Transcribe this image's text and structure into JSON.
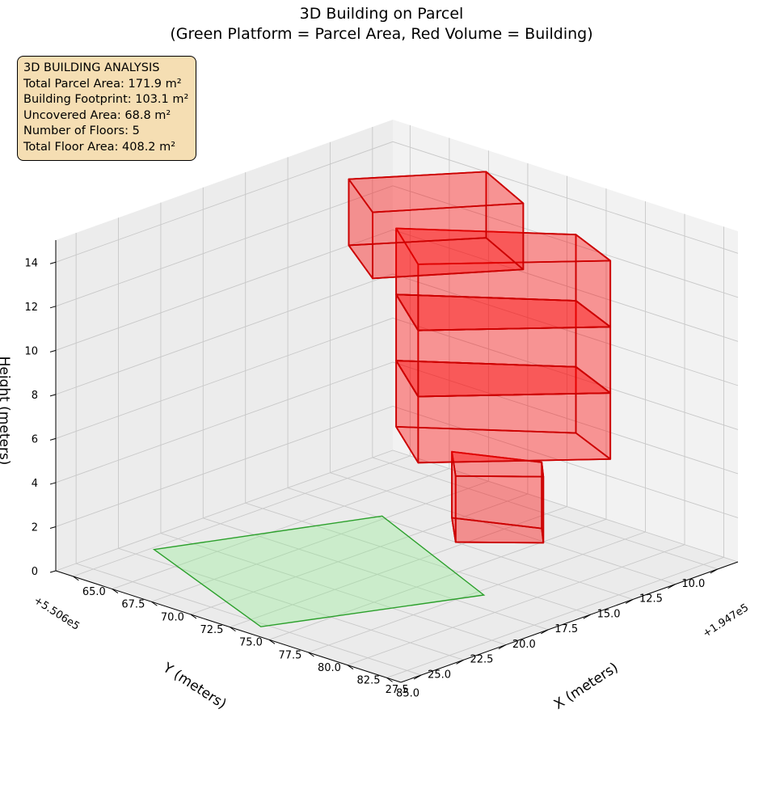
{
  "chart_data": {
    "type": "3d-polygons",
    "title": "3D Building on Parcel",
    "subtitle": "(Green Platform = Parcel Area, Red Volume = Building)",
    "xlabel": "X (meters)",
    "ylabel": "Y (meters)",
    "zlabel": "Height (meters)",
    "x_offset_label": "+1.947e5",
    "y_offset_label": "+5.506e5",
    "x_ticks": [
      "65.0",
      "67.5",
      "70.0",
      "72.5",
      "75.0",
      "77.5",
      "80.0",
      "82.5",
      "85.0"
    ],
    "y_ticks": [
      "10.0",
      "12.5",
      "15.0",
      "17.5",
      "20.0",
      "22.5",
      "25.0",
      "27.5"
    ],
    "z_ticks": [
      "0",
      "2",
      "4",
      "6",
      "8",
      "10",
      "12",
      "14"
    ],
    "x_tick_values": [
      65,
      67.5,
      70,
      72.5,
      75,
      77.5,
      80,
      82.5,
      85
    ],
    "y_tick_values": [
      10,
      12.5,
      15,
      17.5,
      20,
      22.5,
      25,
      27.5
    ],
    "z_tick_values": [
      0,
      2,
      4,
      6,
      8,
      10,
      12,
      14
    ],
    "xlim": [
      63.9,
      85.9
    ],
    "ylim": [
      8.8,
      28.7
    ],
    "zlim": [
      0,
      15
    ],
    "grid": true,
    "parcel": {
      "name": "Parcel Area",
      "area_m2": 171.9,
      "color": "#2ca02c",
      "fill": "#90ee90",
      "height": 0,
      "vertices": [
        [
          69.7,
          14.8
        ],
        [
          65.2,
          24.1
        ],
        [
          76.0,
          27.8
        ],
        [
          80.5,
          18.8
        ]
      ]
    },
    "building_color": "#ff0000",
    "building_edge": "#cc0000",
    "floor_height": 3,
    "floors": [
      {
        "floor": 1,
        "z0": 0,
        "z1": 3,
        "footprint": [
          [
            72.2,
            13.0
          ],
          [
            74.6,
            15.0
          ],
          [
            77.6,
            12.6
          ],
          [
            76.2,
            11.4
          ]
        ]
      },
      {
        "floor": 2,
        "z0": 3,
        "z1": 6,
        "footprint": [
          [
            68.0,
            12.4
          ],
          [
            72.1,
            14.9
          ],
          [
            78.2,
            9.2
          ],
          [
            74.6,
            7.9
          ]
        ]
      },
      {
        "floor": 3,
        "z0": 6,
        "z1": 9,
        "footprint": [
          [
            68.0,
            12.4
          ],
          [
            72.1,
            14.9
          ],
          [
            78.2,
            9.2
          ],
          [
            74.6,
            7.9
          ]
        ]
      },
      {
        "floor": 4,
        "z0": 9,
        "z1": 12,
        "footprint": [
          [
            68.0,
            12.4
          ],
          [
            72.1,
            14.9
          ],
          [
            78.2,
            9.2
          ],
          [
            74.6,
            7.9
          ]
        ]
      },
      {
        "floor": 5,
        "z0": 12,
        "z1": 15,
        "footprint": [
          [
            68.0,
            15.2
          ],
          [
            71.9,
            17.4
          ],
          [
            76.1,
            12.4
          ],
          [
            71.9,
            10.7
          ]
        ]
      }
    ],
    "legend": null
  },
  "info_box": {
    "lines": [
      "3D BUILDING ANALYSIS",
      "Total Parcel Area: 171.9 m²",
      "Building Footprint: 103.1 m²",
      "Uncovered Area: 68.8 m²",
      "Number of Floors: 5",
      "Total Floor Area: 408.2 m²"
    ]
  },
  "colors": {
    "pane_left": "#ececec",
    "pane_right": "#f2f2f2",
    "pane_floor": "#ebebeb",
    "grid": "#c8c8c8",
    "axis": "#000000",
    "info_bg": "#f5deb3"
  }
}
